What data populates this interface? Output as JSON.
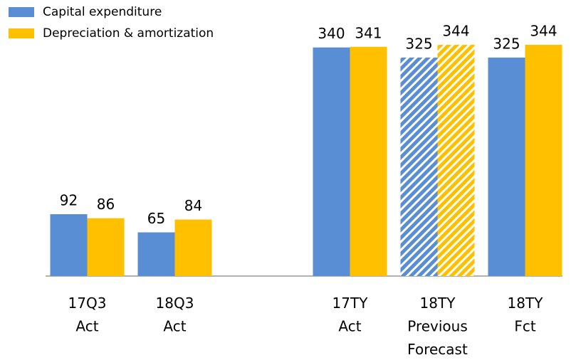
{
  "chart_data": {
    "type": "bar",
    "categories": [
      [
        "17Q3",
        "Act"
      ],
      [
        "18Q3",
        "Act"
      ],
      null,
      [
        "17TY",
        "Act"
      ],
      [
        "18TY",
        "Previous",
        "Forecast"
      ],
      [
        "18TY",
        "Fct"
      ]
    ],
    "series": [
      {
        "name": "Capital expenditure",
        "color": "#5a8ed4",
        "values": [
          92,
          65,
          null,
          340,
          325,
          325
        ]
      },
      {
        "name": "Depreciation & amortization",
        "color": "#ffc000",
        "values": [
          86,
          84,
          null,
          341,
          344,
          344
        ]
      }
    ],
    "hatched": [
      false,
      false,
      false,
      false,
      true,
      false
    ],
    "ylim": [
      0,
      400
    ],
    "legend": "top-left"
  }
}
